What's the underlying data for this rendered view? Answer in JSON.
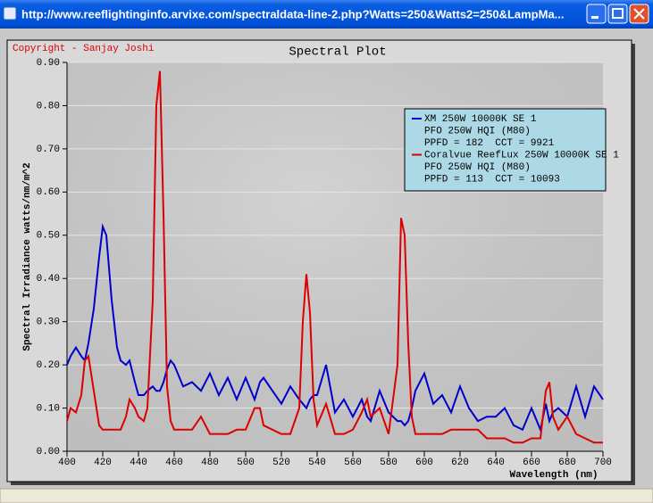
{
  "window": {
    "title": "http://www.reeflightinginfo.arvixe.com/spectraldata-line-2.php?Watts=250&Watts2=250&LampMa..."
  },
  "chart_data": {
    "type": "line",
    "title": "Spectral Plot",
    "copyright": "Copyright - Sanjay Joshi",
    "xlabel": "Wavelength (nm)",
    "ylabel": "Spectral Irradiance watts/nm/m^2",
    "xlim": [
      400,
      700
    ],
    "xticks": [
      400,
      420,
      440,
      460,
      480,
      500,
      520,
      540,
      560,
      580,
      600,
      620,
      640,
      660,
      680,
      700
    ],
    "ylim": [
      0,
      0.9
    ],
    "yticks": [
      {
        "value": 0,
        "label": "0.00"
      },
      {
        "value": 0.1,
        "label": "0.10"
      },
      {
        "value": 0.2,
        "label": "0.20"
      },
      {
        "value": 0.3,
        "label": "0.30"
      },
      {
        "value": 0.4,
        "label": "0.40"
      },
      {
        "value": 0.5,
        "label": "0.50"
      },
      {
        "value": 0.6,
        "label": "0.60"
      },
      {
        "value": 0.7,
        "label": "0.70"
      },
      {
        "value": 0.8,
        "label": "0.80"
      },
      {
        "value": 0.9,
        "label": "0.90"
      }
    ],
    "grid": true,
    "legend": "top-right",
    "x": [
      400,
      402,
      405,
      408,
      410,
      412,
      415,
      418,
      420,
      422,
      425,
      428,
      430,
      433,
      435,
      438,
      440,
      443,
      445,
      448,
      450,
      452,
      454,
      456,
      458,
      460,
      465,
      470,
      475,
      480,
      485,
      490,
      495,
      500,
      505,
      508,
      510,
      515,
      520,
      525,
      530,
      532,
      534,
      536,
      538,
      540,
      545,
      550,
      555,
      560,
      565,
      568,
      570,
      575,
      580,
      585,
      587,
      589,
      591,
      593,
      595,
      600,
      605,
      610,
      615,
      620,
      625,
      630,
      635,
      640,
      645,
      650,
      655,
      660,
      665,
      668,
      670,
      672,
      675,
      680,
      685,
      690,
      695,
      700
    ],
    "series": [
      {
        "name": "XM 250W 10000K SE 1",
        "details": [
          "PFO 250W HQI (M80)",
          "PPFD = 182  CCT = 9921"
        ],
        "color": "#0000cc",
        "values": [
          0.2,
          0.22,
          0.24,
          0.22,
          0.21,
          0.25,
          0.33,
          0.45,
          0.52,
          0.5,
          0.35,
          0.24,
          0.21,
          0.2,
          0.21,
          0.16,
          0.13,
          0.13,
          0.14,
          0.15,
          0.14,
          0.14,
          0.16,
          0.19,
          0.21,
          0.2,
          0.15,
          0.16,
          0.14,
          0.18,
          0.13,
          0.17,
          0.12,
          0.17,
          0.12,
          0.16,
          0.17,
          0.14,
          0.11,
          0.15,
          0.12,
          0.11,
          0.1,
          0.12,
          0.13,
          0.13,
          0.2,
          0.09,
          0.12,
          0.08,
          0.12,
          0.08,
          0.07,
          0.14,
          0.09,
          0.07,
          0.07,
          0.06,
          0.07,
          0.1,
          0.14,
          0.18,
          0.11,
          0.13,
          0.09,
          0.15,
          0.1,
          0.07,
          0.08,
          0.08,
          0.1,
          0.06,
          0.05,
          0.1,
          0.05,
          0.11,
          0.07,
          0.09,
          0.1,
          0.08,
          0.15,
          0.08,
          0.15,
          0.12
        ]
      },
      {
        "name": "Coralvue ReefLux 250W 10000K SE 1",
        "details": [
          "PFO 250W HQI (M80)",
          "PPFD = 113  CCT = 10093"
        ],
        "color": "#dd0000",
        "values": [
          0.07,
          0.1,
          0.09,
          0.13,
          0.21,
          0.22,
          0.14,
          0.06,
          0.05,
          0.05,
          0.05,
          0.05,
          0.05,
          0.08,
          0.12,
          0.1,
          0.08,
          0.07,
          0.1,
          0.35,
          0.8,
          0.88,
          0.55,
          0.15,
          0.07,
          0.05,
          0.05,
          0.05,
          0.08,
          0.04,
          0.04,
          0.04,
          0.05,
          0.05,
          0.1,
          0.1,
          0.06,
          0.05,
          0.04,
          0.04,
          0.1,
          0.3,
          0.41,
          0.32,
          0.12,
          0.06,
          0.11,
          0.04,
          0.04,
          0.05,
          0.09,
          0.12,
          0.08,
          0.1,
          0.04,
          0.2,
          0.54,
          0.5,
          0.25,
          0.08,
          0.04,
          0.04,
          0.04,
          0.04,
          0.05,
          0.05,
          0.05,
          0.05,
          0.03,
          0.03,
          0.03,
          0.02,
          0.02,
          0.03,
          0.03,
          0.14,
          0.16,
          0.08,
          0.05,
          0.08,
          0.04,
          0.03,
          0.02,
          0.02
        ]
      }
    ]
  }
}
